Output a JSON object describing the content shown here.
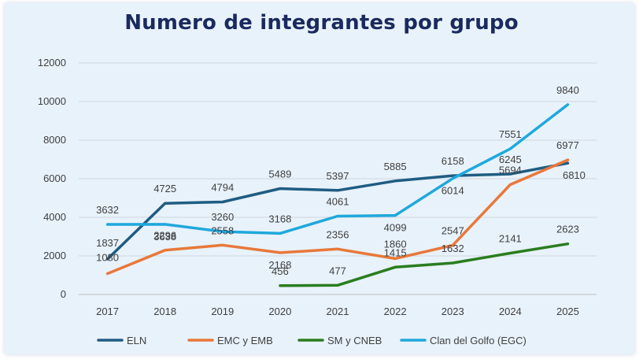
{
  "chart_data": {
    "type": "line",
    "title": "Numero de integrantes por grupo",
    "xlabel": "",
    "ylabel": "",
    "ylim": [
      0,
      12000
    ],
    "yticks": [
      0,
      2000,
      4000,
      6000,
      8000,
      10000,
      12000
    ],
    "categories": [
      "2017",
      "2018",
      "2019",
      "2020",
      "2021",
      "2022",
      "2023",
      "2024",
      "2025"
    ],
    "grid": true,
    "legend_position": "bottom",
    "series": [
      {
        "name": "ELN",
        "color": "#1f5c82",
        "values": [
          1837,
          4725,
          4794,
          5489,
          5397,
          5885,
          6158,
          6245,
          6810
        ],
        "labels": [
          "1837",
          "4725",
          "4794",
          "5489",
          "5397",
          "5885",
          "6158",
          "6245",
          "6810"
        ]
      },
      {
        "name": "EMC y EMB",
        "color": "#e8783a",
        "values": [
          1080,
          2296,
          2558,
          2168,
          2356,
          1860,
          2547,
          5694,
          6977
        ],
        "labels": [
          "1080",
          "2296",
          "2558",
          "2168",
          "2356",
          "1860",
          "2547",
          "5694",
          "6977"
        ]
      },
      {
        "name": "SM y CNEB",
        "color": "#2a7d1f",
        "values": [
          null,
          null,
          null,
          456,
          477,
          1415,
          1632,
          2141,
          2623
        ],
        "labels": [
          "",
          "",
          "",
          "456",
          "477",
          "1415",
          "1632",
          "2141",
          "2623"
        ]
      },
      {
        "name": "Clan del Golfo (EGC)",
        "color": "#1fa8dc",
        "values": [
          3632,
          3638,
          3260,
          3168,
          4061,
          4099,
          6014,
          7551,
          9840
        ],
        "labels": [
          "3632",
          "3638",
          "3260",
          "3168",
          "4061",
          "4099",
          "6014",
          "7551",
          "9840"
        ]
      }
    ]
  }
}
